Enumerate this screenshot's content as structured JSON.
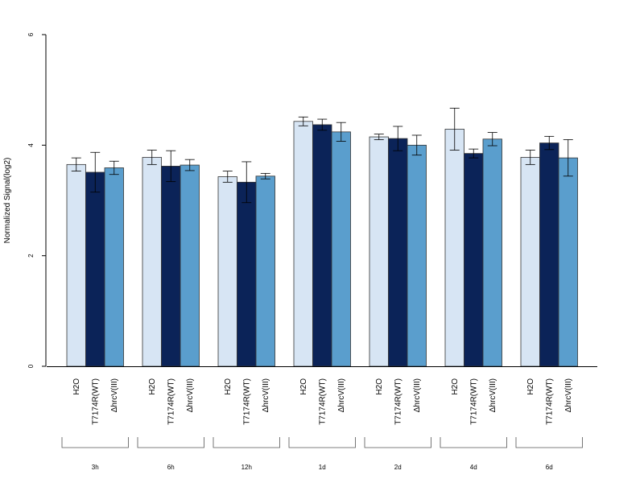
{
  "chart_data": {
    "type": "bar",
    "title": "",
    "xlabel": "",
    "ylabel": "Normalized Signal(log2)",
    "ylim": [
      0,
      6
    ],
    "yticks": [
      0,
      2,
      4,
      6
    ],
    "grid": false,
    "legend": "none",
    "groups": [
      "3h",
      "6h",
      "12h",
      "1d",
      "2d",
      "4d",
      "6d"
    ],
    "bar_labels": [
      "H2O",
      "T7174R(WT)",
      "ΔhrcV(III)"
    ],
    "series": [
      {
        "color": "#d7e5f4",
        "values": [
          3.65,
          3.78,
          3.43,
          4.43,
          4.15,
          4.29,
          3.78
        ],
        "error": [
          0.12,
          0.13,
          0.1,
          0.08,
          0.05,
          0.38,
          0.13
        ]
      },
      {
        "color": "#0b2358",
        "values": [
          3.51,
          3.62,
          3.33,
          4.37,
          4.12,
          3.85,
          4.04
        ],
        "error": [
          0.36,
          0.28,
          0.37,
          0.1,
          0.22,
          0.08,
          0.12
        ]
      },
      {
        "color": "#5a9ecd",
        "values": [
          3.59,
          3.64,
          3.44,
          4.24,
          4.0,
          4.11,
          3.77
        ],
        "error": [
          0.12,
          0.1,
          0.05,
          0.17,
          0.18,
          0.12,
          0.33
        ]
      }
    ]
  }
}
